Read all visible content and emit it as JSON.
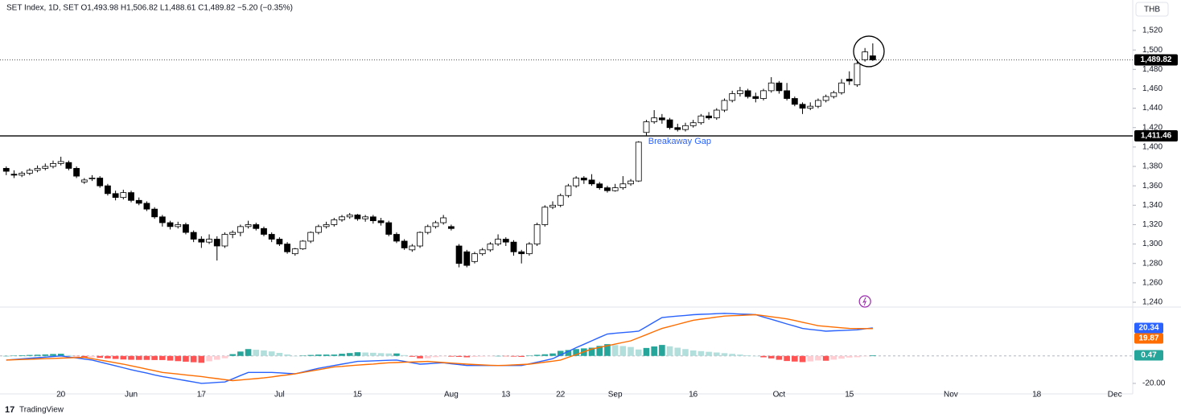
{
  "chart_data": [
    {
      "type": "candlestick",
      "title": "SET Index, 1D, SET O1,493.98 H1,506.82 L1,488.61 C1,489.82 −5.20 (−0.35%)",
      "currency": "THB",
      "annotation": "Breakaway Gap",
      "footer": "TradingView",
      "up_color": "#ffffff",
      "down_color": "#000000",
      "border_color": "#000000",
      "xlim": [
        -0.8,
        144.3
      ],
      "ylim": [
        1236.7,
        1551.5
      ],
      "yticks": [
        {
          "value": 1240,
          "label": "1,240"
        },
        {
          "value": 1260,
          "label": "1,260"
        },
        {
          "value": 1280,
          "label": "1,280"
        },
        {
          "value": 1300,
          "label": "1,300"
        },
        {
          "value": 1320,
          "label": "1,320"
        },
        {
          "value": 1340,
          "label": "1,340"
        },
        {
          "value": 1360,
          "label": "1,360"
        },
        {
          "value": 1380,
          "label": "1,380"
        },
        {
          "value": 1400,
          "label": "1,400"
        },
        {
          "value": 1420,
          "label": "1,420"
        },
        {
          "value": 1440,
          "label": "1,440"
        },
        {
          "value": 1460,
          "label": "1,460"
        },
        {
          "value": 1480,
          "label": "1,480"
        },
        {
          "value": 1500,
          "label": "1,500"
        },
        {
          "value": 1520,
          "label": "1,520"
        }
      ],
      "xticks": [
        {
          "value": 7,
          "label": "20"
        },
        {
          "value": 16,
          "label": "Jun"
        },
        {
          "value": 25,
          "label": "17"
        },
        {
          "value": 35,
          "label": "Jul"
        },
        {
          "value": 45,
          "label": "15"
        },
        {
          "value": 57,
          "label": "Aug"
        },
        {
          "value": 64,
          "label": "13"
        },
        {
          "value": 71,
          "label": "22"
        },
        {
          "value": 78,
          "label": "Sep"
        },
        {
          "value": 88,
          "label": "16"
        },
        {
          "value": 99,
          "label": "Oct"
        },
        {
          "value": 108,
          "label": "15"
        },
        {
          "value": 121,
          "label": "Nov"
        },
        {
          "value": 132,
          "label": "18"
        },
        {
          "value": 142,
          "label": "Dec"
        }
      ],
      "hline": {
        "value": 1411.46,
        "label": "1,411.46",
        "color": "#000000"
      },
      "last_price": {
        "value": 1489.82,
        "label": "1,489.82"
      },
      "ohlc": [
        [
          1378,
          1380,
          1371,
          1375
        ],
        [
          1372,
          1376,
          1368,
          1371
        ],
        [
          1371,
          1375,
          1369,
          1373
        ],
        [
          1373,
          1378,
          1371,
          1376
        ],
        [
          1376,
          1381,
          1374,
          1378
        ],
        [
          1378,
          1383,
          1376,
          1380
        ],
        [
          1380,
          1386,
          1378,
          1383
        ],
        [
          1383,
          1390,
          1381,
          1385
        ],
        [
          1384,
          1386,
          1376,
          1378
        ],
        [
          1378,
          1380,
          1368,
          1370
        ],
        [
          1364,
          1368,
          1362,
          1366
        ],
        [
          1368,
          1371,
          1365,
          1368
        ],
        [
          1368,
          1370,
          1358,
          1360
        ],
        [
          1360,
          1362,
          1350,
          1352
        ],
        [
          1352,
          1355,
          1345,
          1348
        ],
        [
          1348,
          1356,
          1346,
          1353
        ],
        [
          1353,
          1355,
          1343,
          1345
        ],
        [
          1345,
          1348,
          1340,
          1342
        ],
        [
          1342,
          1344,
          1334,
          1336
        ],
        [
          1336,
          1338,
          1326,
          1328
        ],
        [
          1328,
          1330,
          1318,
          1322
        ],
        [
          1322,
          1324,
          1315,
          1318
        ],
        [
          1318,
          1323,
          1316,
          1320
        ],
        [
          1320,
          1322,
          1310,
          1312
        ],
        [
          1312,
          1314,
          1302,
          1305
        ],
        [
          1305,
          1308,
          1296,
          1302
        ],
        [
          1302,
          1310,
          1300,
          1305
        ],
        [
          1305,
          1308,
          1283,
          1298
        ],
        [
          1298,
          1312,
          1296,
          1310
        ],
        [
          1310,
          1314,
          1306,
          1312
        ],
        [
          1312,
          1320,
          1308,
          1318
        ],
        [
          1318,
          1324,
          1316,
          1320
        ],
        [
          1320,
          1322,
          1314,
          1316
        ],
        [
          1316,
          1318,
          1308,
          1310
        ],
        [
          1310,
          1312,
          1302,
          1305
        ],
        [
          1305,
          1307,
          1298,
          1300
        ],
        [
          1300,
          1302,
          1290,
          1292
        ],
        [
          1290,
          1296,
          1288,
          1295
        ],
        [
          1295,
          1304,
          1294,
          1303
        ],
        [
          1303,
          1313,
          1301,
          1312
        ],
        [
          1312,
          1320,
          1310,
          1318
        ],
        [
          1318,
          1323,
          1316,
          1320
        ],
        [
          1320,
          1327,
          1318,
          1325
        ],
        [
          1325,
          1330,
          1323,
          1328
        ],
        [
          1328,
          1332,
          1326,
          1330
        ],
        [
          1330,
          1331,
          1324,
          1326
        ],
        [
          1326,
          1330,
          1323,
          1328
        ],
        [
          1328,
          1330,
          1321,
          1324
        ],
        [
          1324,
          1327,
          1319,
          1322
        ],
        [
          1322,
          1324,
          1308,
          1310
        ],
        [
          1310,
          1312,
          1301,
          1303
        ],
        [
          1303,
          1305,
          1294,
          1296
        ],
        [
          1294,
          1300,
          1292,
          1298
        ],
        [
          1298,
          1313,
          1296,
          1312
        ],
        [
          1312,
          1320,
          1310,
          1318
        ],
        [
          1318,
          1324,
          1316,
          1322
        ],
        [
          1322,
          1330,
          1320,
          1327
        ],
        [
          1318,
          1320,
          1314,
          1316
        ],
        [
          1298,
          1300,
          1276,
          1280
        ],
        [
          1292,
          1294,
          1276,
          1278
        ],
        [
          1282,
          1292,
          1280,
          1290
        ],
        [
          1290,
          1296,
          1288,
          1294
        ],
        [
          1294,
          1302,
          1292,
          1300
        ],
        [
          1300,
          1310,
          1298,
          1305
        ],
        [
          1305,
          1307,
          1298,
          1302
        ],
        [
          1302,
          1304,
          1288,
          1292
        ],
        [
          1292,
          1294,
          1280,
          1290
        ],
        [
          1290,
          1302,
          1288,
          1300
        ],
        [
          1300,
          1322,
          1298,
          1320
        ],
        [
          1320,
          1340,
          1318,
          1338
        ],
        [
          1338,
          1344,
          1336,
          1340
        ],
        [
          1340,
          1352,
          1338,
          1350
        ],
        [
          1350,
          1362,
          1348,
          1360
        ],
        [
          1360,
          1370,
          1358,
          1368
        ],
        [
          1368,
          1370,
          1362,
          1366
        ],
        [
          1366,
          1372,
          1360,
          1362
        ],
        [
          1362,
          1364,
          1356,
          1358
        ],
        [
          1358,
          1360,
          1353,
          1355
        ],
        [
          1355,
          1362,
          1354,
          1358
        ],
        [
          1358,
          1370,
          1356,
          1362
        ],
        [
          1362,
          1367,
          1360,
          1365
        ],
        [
          1365,
          1406,
          1364,
          1405
        ],
        [
          1415,
          1428,
          1412,
          1426
        ],
        [
          1426,
          1438,
          1424,
          1430
        ],
        [
          1430,
          1434,
          1424,
          1428
        ],
        [
          1428,
          1430,
          1418,
          1420
        ],
        [
          1420,
          1424,
          1416,
          1418
        ],
        [
          1418,
          1425,
          1416,
          1422
        ],
        [
          1422,
          1428,
          1420,
          1425
        ],
        [
          1425,
          1434,
          1423,
          1432
        ],
        [
          1432,
          1436,
          1428,
          1430
        ],
        [
          1430,
          1440,
          1428,
          1438
        ],
        [
          1438,
          1450,
          1436,
          1448
        ],
        [
          1448,
          1458,
          1446,
          1455
        ],
        [
          1455,
          1462,
          1452,
          1458
        ],
        [
          1458,
          1460,
          1450,
          1452
        ],
        [
          1452,
          1456,
          1446,
          1450
        ],
        [
          1450,
          1460,
          1448,
          1458
        ],
        [
          1458,
          1472,
          1456,
          1466
        ],
        [
          1466,
          1468,
          1455,
          1458
        ],
        [
          1458,
          1466,
          1448,
          1450
        ],
        [
          1450,
          1452,
          1442,
          1444
        ],
        [
          1444,
          1446,
          1434,
          1440
        ],
        [
          1440,
          1446,
          1438,
          1442
        ],
        [
          1442,
          1450,
          1440,
          1448
        ],
        [
          1448,
          1454,
          1446,
          1452
        ],
        [
          1452,
          1458,
          1450,
          1456
        ],
        [
          1456,
          1470,
          1454,
          1466
        ],
        [
          1470,
          1478,
          1464,
          1468
        ],
        [
          1464,
          1488,
          1462,
          1486
        ],
        [
          1490,
          1502,
          1488,
          1498
        ],
        [
          1493.98,
          1506.82,
          1488.61,
          1489.82
        ]
      ]
    },
    {
      "type": "macd",
      "ylim": [
        -33.5,
        35
      ],
      "yticks": [
        {
          "value": -20,
          "label": "-20.00"
        }
      ],
      "zero_color": "#b2b5be",
      "series": [
        {
          "color": "#2962ff",
          "values": [
            -3,
            -2.6,
            -2.1,
            -1.7,
            -1.3,
            -0.9,
            -0.4,
            0,
            -0.8,
            -1.5,
            -2.3,
            -3,
            -4.4,
            -5.8,
            -7.2,
            -8.6,
            -10,
            -11.3,
            -12.5,
            -13.8,
            -15,
            -16,
            -17,
            -18,
            -19,
            -20,
            -19.7,
            -19.3,
            -19,
            -16.7,
            -14.3,
            -12,
            -12,
            -12,
            -12,
            -12.3,
            -12.7,
            -13,
            -11.7,
            -10.3,
            -9,
            -8,
            -7,
            -6,
            -5,
            -4,
            -3.8,
            -3.6,
            -3.4,
            -3.2,
            -3,
            -4,
            -5,
            -6,
            -5.7,
            -5.3,
            -5,
            -5.7,
            -6.3,
            -7,
            -7,
            -7,
            -7,
            -7,
            -7,
            -7,
            -7,
            -5.8,
            -4.5,
            -3.3,
            -2,
            0.7,
            3.3,
            6,
            8.5,
            11,
            13.5,
            16,
            16.5,
            17,
            17.5,
            18,
            21.3,
            24.7,
            28,
            28.5,
            29,
            29.5,
            30,
            30.3,
            30.5,
            30.8,
            31,
            30.8,
            30.5,
            30.3,
            30,
            28.3,
            26.7,
            25,
            23.3,
            21.7,
            20,
            19.3,
            18.7,
            18,
            18.3,
            18.5,
            18.8,
            19,
            19.7,
            20.34
          ]
        },
        {
          "color": "#ff6d00",
          "values": [
            -3,
            -2.8,
            -2.6,
            -2.4,
            -2.2,
            -2,
            -1.8,
            -1.6,
            -1.4,
            -1.2,
            -1,
            -2,
            -3,
            -4,
            -5,
            -6,
            -7.2,
            -8.4,
            -9.6,
            -10.8,
            -12,
            -12.6,
            -13.2,
            -13.8,
            -14.4,
            -15,
            -15.8,
            -16.5,
            -17.3,
            -18,
            -17.5,
            -17,
            -16.5,
            -16,
            -15.3,
            -14.5,
            -13.8,
            -13,
            -12,
            -11,
            -10,
            -9,
            -8,
            -7.6,
            -7.1,
            -6.7,
            -6.3,
            -5.9,
            -5.4,
            -5,
            -4.8,
            -4.6,
            -4.4,
            -4.2,
            -4,
            -4.4,
            -4.8,
            -5.2,
            -5.6,
            -6,
            -6.3,
            -6.5,
            -6.8,
            -7,
            -6.8,
            -6.5,
            -6.3,
            -6,
            -5.3,
            -4.5,
            -3.8,
            -3,
            -1,
            1,
            3,
            5,
            6.2,
            7.4,
            8.6,
            9.8,
            11,
            13.3,
            15.5,
            17.8,
            20,
            21.5,
            23,
            24.5,
            26,
            26.8,
            27.5,
            28.3,
            29,
            29.3,
            29.5,
            29.8,
            30,
            29.3,
            28.5,
            27.8,
            27,
            25.8,
            24.5,
            23.3,
            22,
            21.5,
            21,
            20.5,
            20,
            19.96,
            19.91,
            19.87
          ]
        }
      ],
      "histogram": {
        "colors": {
          "pos_up": "#26a69a",
          "pos_down": "#b2dfdb",
          "neg_down": "#ff5252",
          "neg_up": "#ffcdd2"
        },
        "values": [
          0,
          0.2,
          0.5,
          0.7,
          0.9,
          1.1,
          1.4,
          1.6,
          0.6,
          -0.3,
          -1.3,
          -1,
          -1.4,
          -1.8,
          -2.2,
          -2.6,
          -2.8,
          -2.9,
          -2.9,
          -3,
          -3,
          -3.4,
          -3.8,
          -4.2,
          -4.6,
          -5,
          -3.9,
          -2.8,
          -1.7,
          1.3,
          3.2,
          5,
          4.5,
          4,
          3.3,
          2.2,
          1.1,
          0,
          0.3,
          0.7,
          1,
          1,
          1,
          1.6,
          2.1,
          2.7,
          2.5,
          2.3,
          2,
          1.8,
          1.8,
          0.6,
          -0.6,
          -1.8,
          -1.7,
          -0.9,
          -0.2,
          -0.5,
          -0.7,
          -1,
          -0.7,
          -0.5,
          -0.2,
          0,
          -0.2,
          -0.5,
          -0.7,
          0.2,
          0.8,
          1.2,
          1.8,
          3.7,
          4.3,
          5,
          5.5,
          6,
          7.3,
          8.6,
          7.9,
          7.2,
          6.5,
          4.7,
          5.8,
          6.9,
          8,
          7,
          6,
          5,
          4,
          3.5,
          3,
          2.5,
          2,
          1.5,
          1,
          0.5,
          0,
          -1,
          -1.8,
          -2.8,
          -3.7,
          -4.1,
          -4.5,
          -4,
          -3.3,
          -3.5,
          -2.7,
          -2,
          -1.2,
          -0.96,
          -0.21,
          0.47
        ]
      }
    }
  ]
}
